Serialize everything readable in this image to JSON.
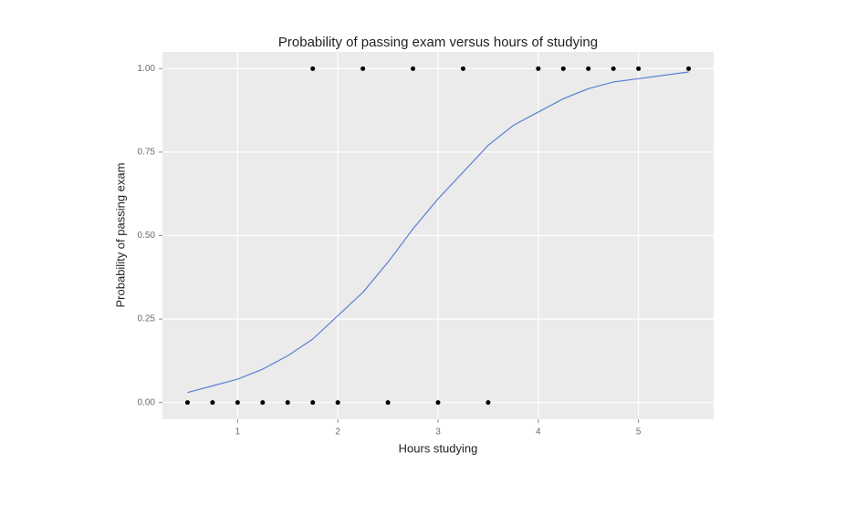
{
  "chart_data": {
    "type": "scatter",
    "title": "Probability of passing exam versus hours of studying",
    "xlabel": "Hours studying",
    "ylabel": "Probability of passing exam",
    "x": [
      0.5,
      0.75,
      1,
      1.25,
      1.5,
      1.75,
      1.75,
      2,
      2.25,
      2.5,
      2.75,
      3,
      3.25,
      3.5,
      4,
      4.25,
      4.5,
      4.75,
      5,
      5.5
    ],
    "values": [
      0,
      0,
      0,
      0,
      0,
      0,
      1,
      0,
      1,
      0,
      1,
      0,
      1,
      0,
      1,
      1,
      1,
      1,
      1,
      1
    ],
    "color": "#000000",
    "curve": {
      "type": "line",
      "color": "#5b7fd6",
      "x": [
        0.5,
        0.75,
        1,
        1.25,
        1.5,
        1.75,
        2,
        2.25,
        2.5,
        2.75,
        3,
        3.25,
        3.5,
        3.75,
        4,
        4.25,
        4.5,
        4.75,
        5,
        5.25,
        5.5
      ],
      "values": [
        0.03,
        0.05,
        0.07,
        0.1,
        0.14,
        0.19,
        0.26,
        0.33,
        0.42,
        0.52,
        0.61,
        0.69,
        0.77,
        0.83,
        0.87,
        0.91,
        0.94,
        0.96,
        0.97,
        0.98,
        0.99
      ]
    },
    "xlim": [
      0.25,
      5.75
    ],
    "xticks": [
      1,
      2,
      3,
      4,
      5
    ],
    "ylim": [
      -0.05,
      1.05
    ],
    "yticks": [
      {
        "value": 0,
        "label": "0.00"
      },
      {
        "value": 0.25,
        "label": "0.25"
      },
      {
        "value": 0.5,
        "label": "0.50"
      },
      {
        "value": 0.75,
        "label": "0.75"
      },
      {
        "value": 1,
        "label": "1.00"
      }
    ],
    "grid": true
  }
}
